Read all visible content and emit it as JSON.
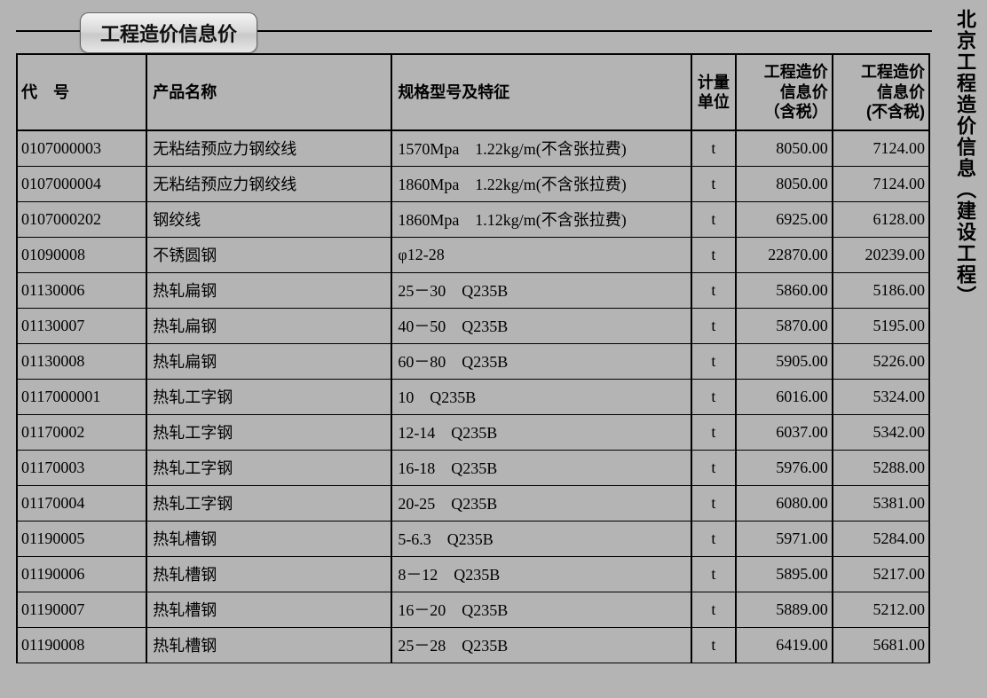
{
  "side_title": "北京工程造价信息（建设工程）",
  "page_title": "工程造价信息价",
  "table": {
    "columns": [
      {
        "label": "代　号",
        "class": "c-code"
      },
      {
        "label": "产品名称",
        "class": "c-name"
      },
      {
        "label": "规格型号及特征",
        "class": "c-spec"
      },
      {
        "label": "计量\n单位",
        "class": "c-unit"
      },
      {
        "label": "工程造价\n信息价\n（含税）",
        "class": "c-p1"
      },
      {
        "label": "工程造价\n信息价\n(不含税)",
        "class": "c-p2"
      }
    ],
    "rows": [
      [
        "0107000003",
        "无粘结预应力钢绞线",
        "1570Mpa　1.22kg/m(不含张拉费)",
        "t",
        "8050.00",
        "7124.00"
      ],
      [
        "0107000004",
        "无粘结预应力钢绞线",
        "1860Mpa　1.22kg/m(不含张拉费)",
        "t",
        "8050.00",
        "7124.00"
      ],
      [
        "0107000202",
        "钢绞线",
        "1860Mpa　1.12kg/m(不含张拉费)",
        "t",
        "6925.00",
        "6128.00"
      ],
      [
        "01090008",
        "不锈圆钢",
        "φ12-28",
        "t",
        "22870.00",
        "20239.00"
      ],
      [
        "01130006",
        "热轧扁钢",
        "25－30　Q235B",
        "t",
        "5860.00",
        "5186.00"
      ],
      [
        "01130007",
        "热轧扁钢",
        "40－50　Q235B",
        "t",
        "5870.00",
        "5195.00"
      ],
      [
        "01130008",
        "热轧扁钢",
        "60－80　Q235B",
        "t",
        "5905.00",
        "5226.00"
      ],
      [
        "0117000001",
        "热轧工字钢",
        "10　Q235B",
        "t",
        "6016.00",
        "5324.00"
      ],
      [
        "01170002",
        "热轧工字钢",
        "12-14　Q235B",
        "t",
        "6037.00",
        "5342.00"
      ],
      [
        "01170003",
        "热轧工字钢",
        "16-18　Q235B",
        "t",
        "5976.00",
        "5288.00"
      ],
      [
        "01170004",
        "热轧工字钢",
        "20-25　Q235B",
        "t",
        "6080.00",
        "5381.00"
      ],
      [
        "01190005",
        "热轧槽钢",
        "5-6.3　Q235B",
        "t",
        "5971.00",
        "5284.00"
      ],
      [
        "01190006",
        "热轧槽钢",
        "8－12　Q235B",
        "t",
        "5895.00",
        "5217.00"
      ],
      [
        "01190007",
        "热轧槽钢",
        "16－20　Q235B",
        "t",
        "5889.00",
        "5212.00"
      ],
      [
        "01190008",
        "热轧槽钢",
        "25－28　Q235B",
        "t",
        "6419.00",
        "5681.00"
      ]
    ]
  },
  "colors": {
    "page_bg": "#b4b4b4",
    "border": "#000000",
    "text": "#000000"
  }
}
